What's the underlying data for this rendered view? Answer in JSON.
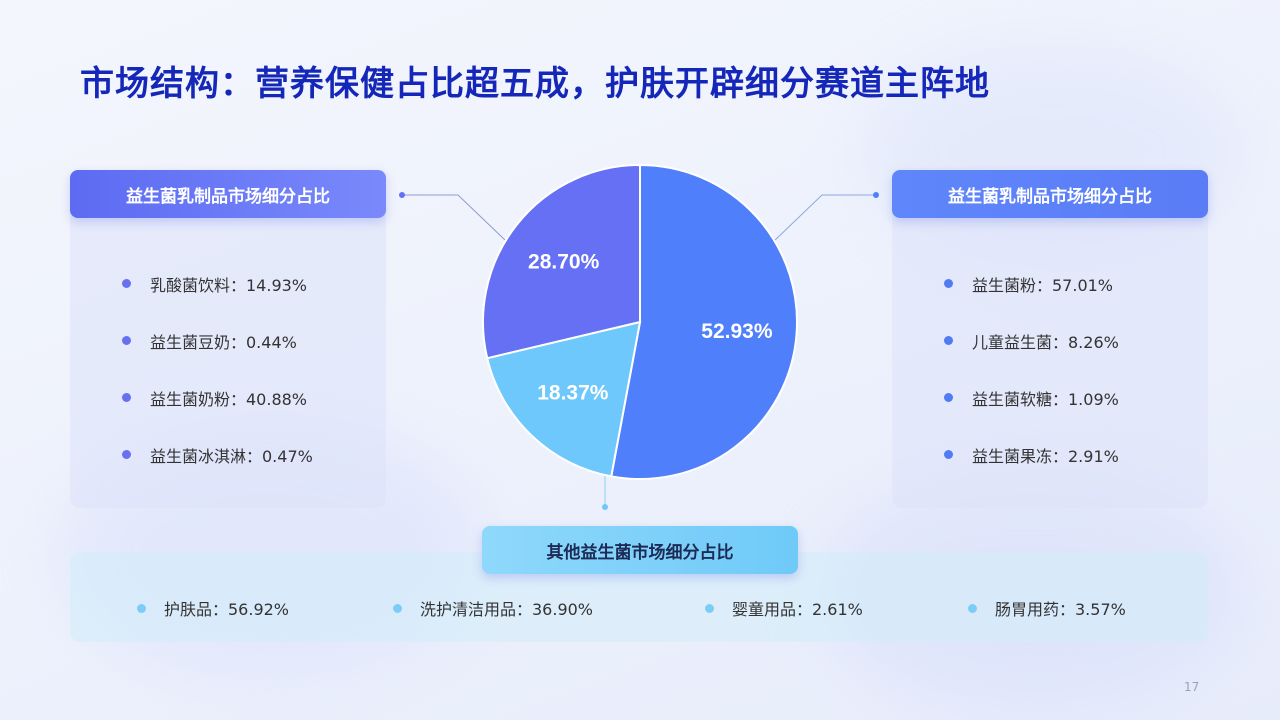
{
  "title": "市场结构：营养保健占比超五成，护肤开辟细分赛道主阵地",
  "page_number": "17",
  "panels": {
    "left": {
      "header": "益生菌乳制品市场细分占比",
      "items": [
        {
          "label": "乳酸菌饮料：14.93%"
        },
        {
          "label": "益生菌豆奶：0.44%"
        },
        {
          "label": "益生菌奶粉：40.88%"
        },
        {
          "label": "益生菌冰淇淋：0.47%"
        }
      ]
    },
    "right": {
      "header": "益生菌乳制品市场细分占比",
      "items": [
        {
          "label": "益生菌粉：57.01%"
        },
        {
          "label": "儿童益生菌：8.26%"
        },
        {
          "label": " 益生菌软糖：1.09%"
        },
        {
          "label": "益生菌果冻：2.91%"
        }
      ]
    },
    "bottom": {
      "header": "其他益生菌市场细分占比",
      "items": [
        {
          "label": "护肤品：56.92%"
        },
        {
          "label": "洗护清洁用品：36.90%"
        },
        {
          "label": "婴童用品：2.61%"
        },
        {
          "label": "肠胃用药：3.57%"
        }
      ]
    }
  },
  "chart_data": {
    "type": "pie",
    "title": "",
    "slices": [
      {
        "label": "52.93%",
        "value": 52.93,
        "color": "#4f7ffa"
      },
      {
        "label": "18.37%",
        "value": 18.37,
        "color": "#6fc8fb"
      },
      {
        "label": "28.70%",
        "value": 28.7,
        "color": "#6670f4"
      }
    ],
    "start_angle_deg": 0,
    "direction": "clockwise"
  },
  "colors": {
    "title": "#1427b8",
    "left_accent": "#6670f4",
    "right_accent": "#4f7ffa",
    "bottom_accent": "#6fc8fb"
  }
}
